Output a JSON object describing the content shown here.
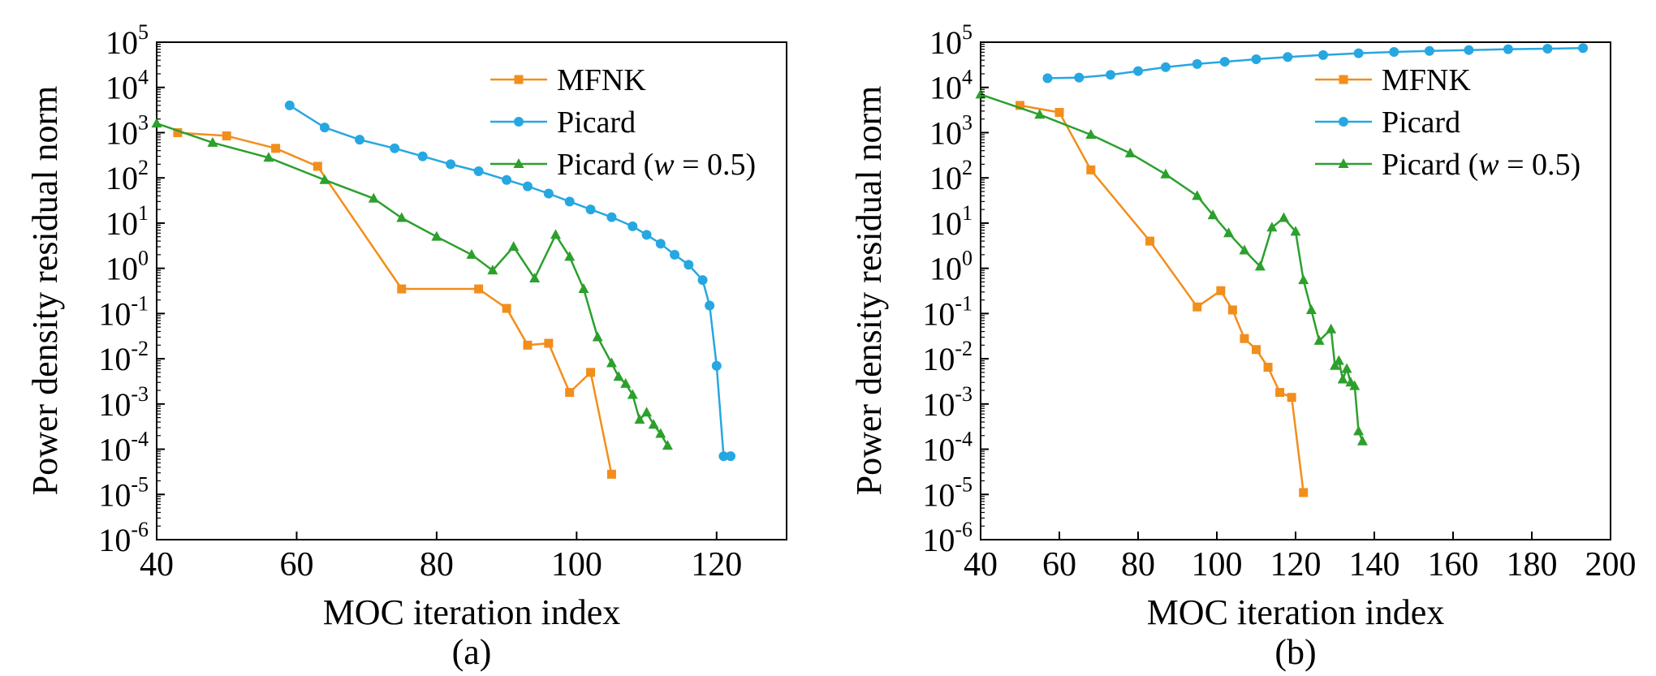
{
  "chart_data": [
    {
      "type": "line",
      "panel_label": "(a)",
      "xlabel": "MOC iteration index",
      "ylabel": "Power density residual norm",
      "xlim": [
        40,
        130
      ],
      "ylim_log10": [
        -6,
        5
      ],
      "xticks": [
        40,
        60,
        80,
        100,
        120
      ],
      "series": [
        {
          "name": "MFNK",
          "color": "#f28e1c",
          "marker": "square",
          "x": [
            43,
            50,
            57,
            63,
            75,
            86,
            90,
            93,
            96,
            99,
            102,
            105
          ],
          "y": [
            1000.0,
            850.0,
            450.0,
            180.0,
            0.35,
            0.35,
            0.13,
            0.02,
            0.022,
            0.0018,
            0.005,
            2.8e-05
          ]
        },
        {
          "name": "Picard",
          "color": "#27a7e1",
          "marker": "circle",
          "x": [
            59,
            64,
            69,
            74,
            78,
            82,
            86,
            90,
            93,
            96,
            99,
            102,
            105,
            108,
            110,
            112,
            114,
            116,
            118,
            119,
            120,
            121,
            122
          ],
          "y": [
            4000.0,
            1300.0,
            700.0,
            450.0,
            300.0,
            200.0,
            140.0,
            90.0,
            65.0,
            45.0,
            30.0,
            20.0,
            13.5,
            8.5,
            5.5,
            3.5,
            2.0,
            1.2,
            0.55,
            0.15,
            0.007,
            7e-05,
            7e-05
          ]
        },
        {
          "name": "Picard (w = 0.5)",
          "color": "#2ca02c",
          "marker": "triangle",
          "x": [
            40,
            48,
            56,
            64,
            71,
            75,
            80,
            85,
            88,
            91,
            94,
            97,
            99,
            101,
            103,
            105,
            106,
            107,
            108,
            109,
            110,
            111,
            112,
            113
          ],
          "y": [
            1600.0,
            600.0,
            280.0,
            90.0,
            35.0,
            13.0,
            5.0,
            2.0,
            0.9,
            3.0,
            0.6,
            5.5,
            1.8,
            0.35,
            0.03,
            0.008,
            0.004,
            0.0028,
            0.0016,
            0.00045,
            0.00065,
            0.00035,
            0.00022,
            0.00012
          ]
        }
      ]
    },
    {
      "type": "line",
      "panel_label": "(b)",
      "xlabel": "MOC iteration index",
      "ylabel": "Power density residual norm",
      "xlim": [
        40,
        200
      ],
      "ylim_log10": [
        -6,
        5
      ],
      "xticks": [
        40,
        60,
        80,
        100,
        120,
        140,
        160,
        180,
        200
      ],
      "series": [
        {
          "name": "MFNK",
          "color": "#f28e1c",
          "marker": "square",
          "x": [
            50,
            60,
            68,
            83,
            95,
            101,
            104,
            107,
            110,
            113,
            116,
            119,
            122
          ],
          "y": [
            4000.0,
            2800.0,
            150.0,
            4.0,
            0.14,
            0.32,
            0.12,
            0.028,
            0.016,
            0.0065,
            0.0018,
            0.0014,
            1.1e-05
          ]
        },
        {
          "name": "Picard",
          "color": "#27a7e1",
          "marker": "circle",
          "x": [
            57,
            65,
            73,
            80,
            87,
            95,
            102,
            110,
            118,
            127,
            136,
            145,
            154,
            164,
            174,
            184,
            193
          ],
          "y": [
            16000.0,
            16500.0,
            19000.0,
            23000.0,
            28000.0,
            33000.0,
            37000.0,
            42000.0,
            47000.0,
            52000.0,
            57000.0,
            61000.0,
            64000.0,
            67000.0,
            70000.0,
            72000.0,
            74000.0
          ]
        },
        {
          "name": "Picard (w = 0.5)",
          "color": "#2ca02c",
          "marker": "triangle",
          "x": [
            40,
            55,
            68,
            78,
            87,
            95,
            99,
            103,
            107,
            111,
            114,
            117,
            120,
            122,
            124,
            126,
            129,
            130,
            131,
            132,
            133,
            134,
            135,
            136,
            137
          ],
          "y": [
            7000.0,
            2500.0,
            900.0,
            350.0,
            120.0,
            40.0,
            15.0,
            6.0,
            2.5,
            1.1,
            8.0,
            13.0,
            6.5,
            0.55,
            0.12,
            0.025,
            0.045,
            0.007,
            0.009,
            0.0035,
            0.006,
            0.003,
            0.0025,
            0.00025,
            0.00015
          ]
        }
      ]
    }
  ]
}
